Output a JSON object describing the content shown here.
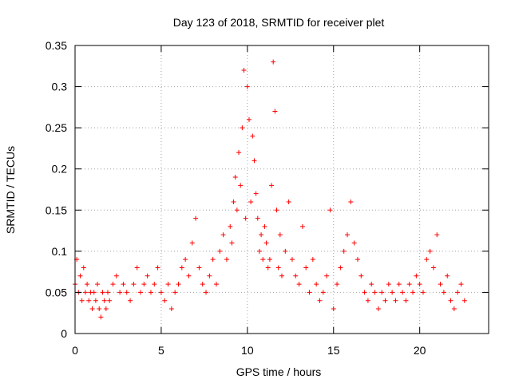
{
  "chart_data": {
    "type": "scatter",
    "title": "Day 123 of 2018, SRMTID for receiver plet",
    "xlabel": "GPS time / hours",
    "ylabel": "SRMTID / TECUs",
    "xlim": [
      0,
      24
    ],
    "ylim": [
      0,
      0.35
    ],
    "xticks": [
      0,
      5,
      10,
      15,
      20
    ],
    "xtick_labels": [
      "0",
      "5",
      "10",
      "15",
      "20"
    ],
    "yticks": [
      0,
      0.05,
      0.1,
      0.15,
      0.2,
      0.25,
      0.3,
      0.35
    ],
    "ytick_labels": [
      "0",
      "0.05",
      "0.1",
      "0.15",
      "0.2",
      "0.25",
      "0.3",
      "0.35"
    ],
    "grid": true,
    "marker": "+",
    "color": "#ff0000",
    "series": [
      {
        "name": "SRMTID",
        "x": [
          0.0,
          0.1,
          0.2,
          0.3,
          0.4,
          0.5,
          0.6,
          0.7,
          0.8,
          0.9,
          1.0,
          1.1,
          1.2,
          1.3,
          1.4,
          1.5,
          1.6,
          1.7,
          1.8,
          1.9,
          2.0,
          2.2,
          2.4,
          2.6,
          2.8,
          3.0,
          3.2,
          3.4,
          3.6,
          3.8,
          4.0,
          4.2,
          4.4,
          4.6,
          4.8,
          5.0,
          5.2,
          5.4,
          5.6,
          5.8,
          6.0,
          6.2,
          6.4,
          6.6,
          6.8,
          7.0,
          7.2,
          7.4,
          7.6,
          7.8,
          8.0,
          8.2,
          8.4,
          8.6,
          8.8,
          9.0,
          9.1,
          9.2,
          9.3,
          9.4,
          9.5,
          9.6,
          9.7,
          9.8,
          9.9,
          10.0,
          10.1,
          10.2,
          10.3,
          10.4,
          10.5,
          10.6,
          10.7,
          10.8,
          10.9,
          11.0,
          11.1,
          11.2,
          11.3,
          11.4,
          11.5,
          11.6,
          11.7,
          11.8,
          11.9,
          12.0,
          12.2,
          12.4,
          12.6,
          12.8,
          13.0,
          13.2,
          13.4,
          13.6,
          13.8,
          14.0,
          14.2,
          14.4,
          14.6,
          14.8,
          15.0,
          15.2,
          15.4,
          15.6,
          15.8,
          16.0,
          16.2,
          16.4,
          16.6,
          16.8,
          17.0,
          17.2,
          17.4,
          17.6,
          17.8,
          18.0,
          18.2,
          18.4,
          18.6,
          18.8,
          19.0,
          19.2,
          19.4,
          19.6,
          19.8,
          20.0,
          20.2,
          20.4,
          20.6,
          20.8,
          21.0,
          21.2,
          21.4,
          21.6,
          21.8,
          22.0,
          22.2,
          22.4,
          22.6
        ],
        "y": [
          0.06,
          0.09,
          0.05,
          0.07,
          0.04,
          0.08,
          0.05,
          0.06,
          0.04,
          0.05,
          0.03,
          0.05,
          0.04,
          0.06,
          0.03,
          0.02,
          0.05,
          0.04,
          0.03,
          0.05,
          0.04,
          0.06,
          0.07,
          0.05,
          0.06,
          0.05,
          0.04,
          0.06,
          0.08,
          0.05,
          0.06,
          0.07,
          0.05,
          0.06,
          0.08,
          0.05,
          0.04,
          0.06,
          0.03,
          0.05,
          0.06,
          0.08,
          0.09,
          0.07,
          0.11,
          0.14,
          0.08,
          0.06,
          0.05,
          0.07,
          0.09,
          0.06,
          0.1,
          0.12,
          0.09,
          0.13,
          0.11,
          0.16,
          0.19,
          0.15,
          0.22,
          0.18,
          0.25,
          0.32,
          0.14,
          0.3,
          0.26,
          0.16,
          0.24,
          0.21,
          0.17,
          0.14,
          0.1,
          0.12,
          0.09,
          0.13,
          0.11,
          0.08,
          0.09,
          0.18,
          0.33,
          0.27,
          0.15,
          0.08,
          0.12,
          0.07,
          0.1,
          0.16,
          0.09,
          0.07,
          0.06,
          0.13,
          0.08,
          0.05,
          0.09,
          0.06,
          0.04,
          0.05,
          0.07,
          0.15,
          0.03,
          0.06,
          0.08,
          0.1,
          0.12,
          0.16,
          0.11,
          0.09,
          0.07,
          0.05,
          0.04,
          0.06,
          0.05,
          0.03,
          0.05,
          0.04,
          0.06,
          0.05,
          0.04,
          0.06,
          0.05,
          0.04,
          0.06,
          0.05,
          0.07,
          0.06,
          0.05,
          0.09,
          0.1,
          0.08,
          0.12,
          0.06,
          0.05,
          0.07,
          0.04,
          0.03,
          0.05,
          0.06,
          0.04
        ]
      }
    ]
  }
}
